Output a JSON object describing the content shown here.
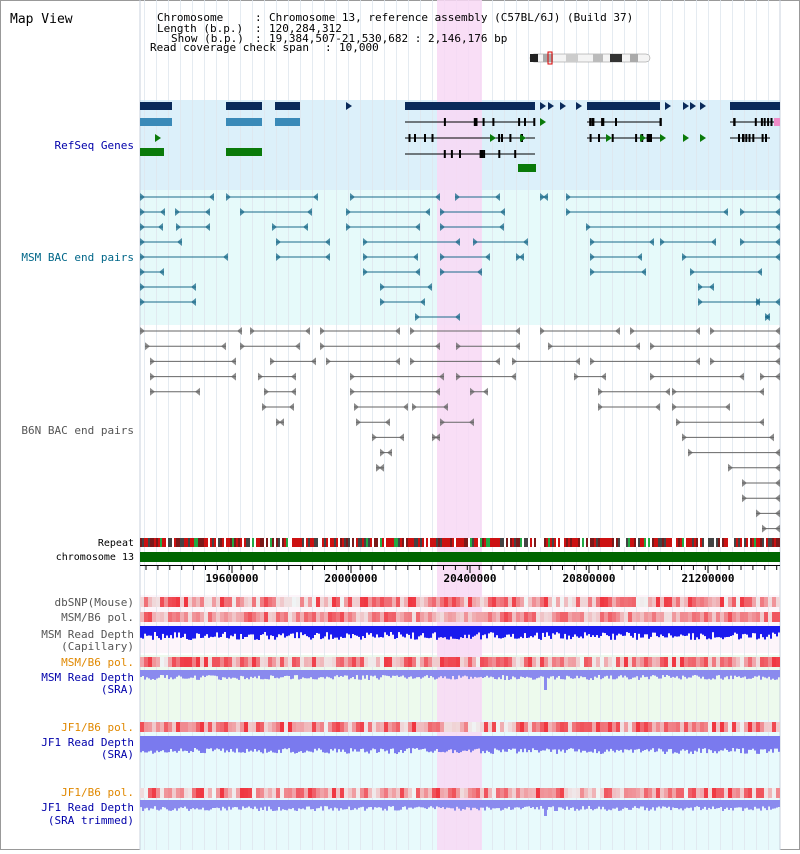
{
  "panel_title": "Map View",
  "info": {
    "chromosome_label": "Chromosome",
    "chromosome_value": "Chromosome 13, reference assembly (C57BL/6J) (Build 37)",
    "length_label": "Length (b.p.)",
    "length_value": "120,284,312",
    "show_label": "Show (b.p.)",
    "show_value": "19,384,507-21,530,682 : 2,146,176 bp",
    "coverage_label": "Read coverage check span",
    "coverage_value": "10,000"
  },
  "tracks": {
    "refseq": "RefSeq Genes",
    "msm_bac": "MSM BAC end pairs",
    "b6n_bac": "B6N BAC end pairs",
    "repeat": "Repeat",
    "chromosome": "chromosome 13",
    "dbsnp": "dbSNP(Mouse)",
    "msm_b6_pol_1": "MSM/B6 pol.",
    "msm_depth_cap_1": "MSM Read Depth",
    "msm_depth_cap_2": "(Capillary)",
    "msm_b6_pol_2": "MSM/B6 pol.",
    "msm_depth_sra_1": "MSM Read Depth",
    "msm_depth_sra_2": "(SRA)",
    "jf1_b6_pol_1": "JF1/B6 pol.",
    "jf1_depth_sra_1": "JF1 Read Depth",
    "jf1_depth_sra_2": "(SRA)",
    "jf1_b6_pol_2": "JF1/B6 pol.",
    "jf1_depth_trim_1": "JF1 Read Depth",
    "jf1_depth_trim_2": "(SRA trimmed)"
  },
  "axis": {
    "ticks": [
      "19600000",
      "20000000",
      "20400000",
      "20800000",
      "21200000"
    ]
  },
  "colors": {
    "refseq_label": "#0000aa",
    "msm_label": "#006688",
    "gray_label": "#555555",
    "orange_label": "#e08800",
    "blue_label": "#0000aa",
    "highlight": "#f8d8f4",
    "gene_navy": "#0a2a5a",
    "gene_steel": "#3a8ab8",
    "gene_green": "#0a7a0a",
    "msm_feature": "#1a6a8a",
    "b6n_feature": "#666666"
  }
}
